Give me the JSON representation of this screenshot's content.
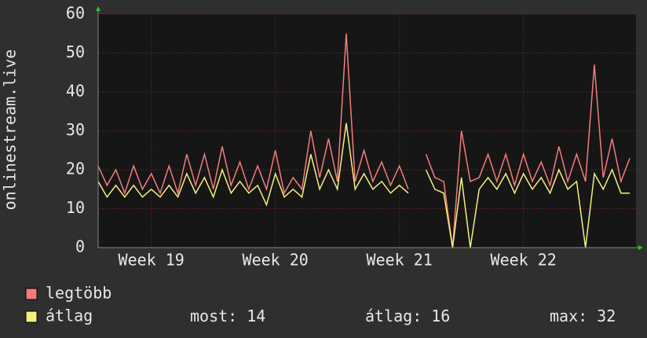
{
  "chart_data": {
    "type": "line",
    "ylabel": "onlinestream.live",
    "x": [
      0,
      0.5,
      1,
      1.5,
      2,
      2.5,
      3,
      3.5,
      4,
      4.5,
      5,
      5.5,
      6,
      6.5,
      7,
      7.5,
      8,
      8.5,
      9,
      9.5,
      10,
      10.5,
      11,
      11.5,
      12,
      12.5,
      13,
      13.5,
      14,
      14.5,
      15,
      15.5,
      16,
      16.5,
      17,
      17.5,
      18,
      18.5,
      19,
      19.5,
      20,
      20.5,
      21,
      21.5,
      22,
      22.5,
      23,
      23.5,
      24,
      24.5,
      25,
      25.5,
      26,
      26.5,
      27,
      27.5,
      28,
      28.5,
      29,
      29.5,
      30
    ],
    "series": [
      {
        "name": "legtöbb",
        "color": "#f47c7c",
        "values": [
          21,
          16,
          20,
          14,
          21,
          15,
          19,
          14,
          21,
          14,
          24,
          16,
          24,
          15,
          26,
          16,
          22,
          15,
          21,
          15,
          25,
          14,
          18,
          15,
          30,
          18,
          28,
          17,
          55,
          17,
          25,
          17,
          22,
          16,
          21,
          15,
          null,
          24,
          18,
          17,
          0,
          30,
          17,
          18,
          24,
          17,
          24,
          16,
          24,
          17,
          22,
          16,
          26,
          17,
          24,
          17,
          47,
          18,
          28,
          17,
          23
        ]
      },
      {
        "name": "átlag",
        "color": "#f4f07c",
        "values": [
          17,
          13,
          16,
          13,
          16,
          13,
          15,
          13,
          16,
          13,
          19,
          14,
          18,
          13,
          20,
          14,
          17,
          14,
          16,
          11,
          19,
          13,
          15,
          13,
          24,
          15,
          20,
          15,
          32,
          15,
          19,
          15,
          17,
          14,
          16,
          14,
          null,
          20,
          15,
          14,
          0,
          18,
          0,
          15,
          18,
          15,
          19,
          14,
          19,
          15,
          18,
          14,
          20,
          15,
          17,
          0,
          19,
          15,
          20,
          14,
          14
        ]
      }
    ],
    "xlim": [
      0,
      30.35
    ],
    "xticks": [
      {
        "value": 3,
        "label": "Week 19"
      },
      {
        "value": 10,
        "label": "Week 20"
      },
      {
        "value": 17,
        "label": "Week 21"
      },
      {
        "value": 24,
        "label": "Week 22"
      }
    ],
    "ylim": [
      0,
      60
    ],
    "yticks": [
      0,
      10,
      20,
      30,
      40,
      50,
      60
    ],
    "grid": true,
    "stats": [
      {
        "label": "most:",
        "value": 14
      },
      {
        "label": "átlag:",
        "value": 16
      },
      {
        "label": "max:",
        "value": 32
      }
    ]
  }
}
